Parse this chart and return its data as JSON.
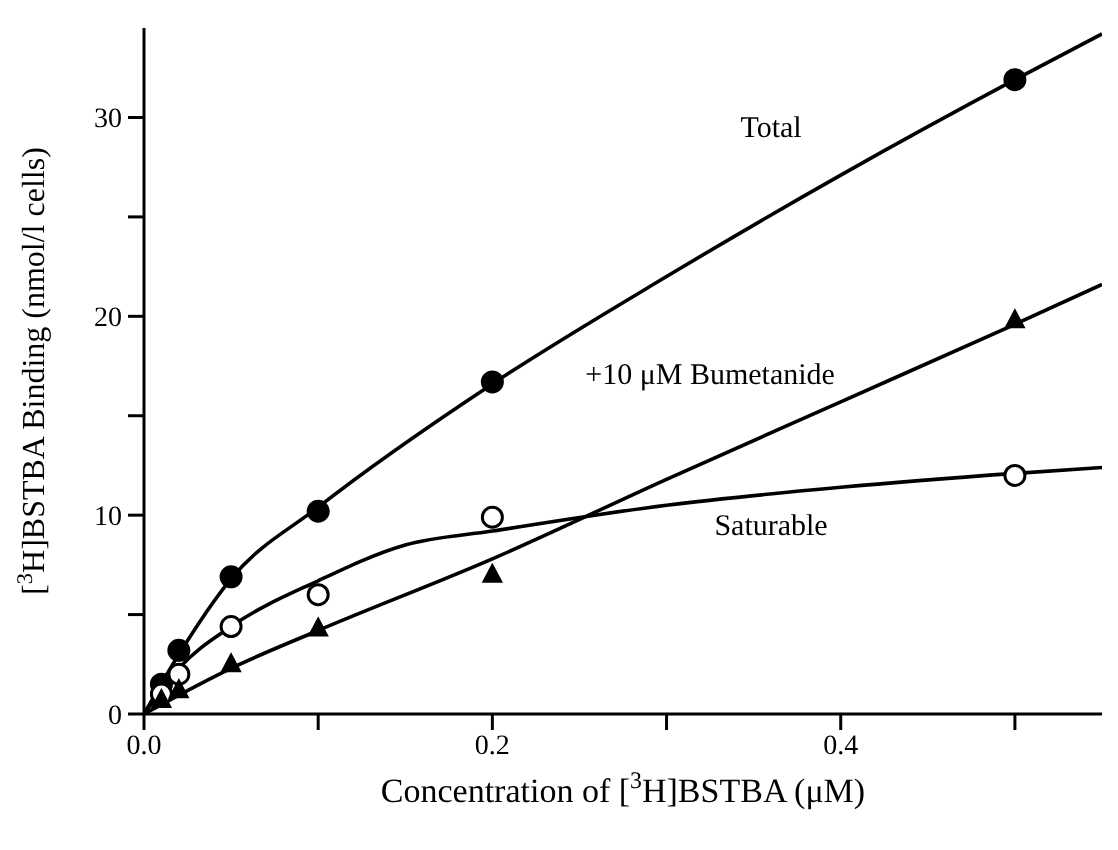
{
  "chart_data": {
    "type": "scatter",
    "xlabel": "Concentration of [$^{3}$H]BSTBA  (μM)",
    "ylabel": "[$^{3}$H]BSTBA Binding  (nmol/l cells)",
    "xlim": [
      0,
      0.55
    ],
    "xticks": [
      {
        "value": 0,
        "label": "0.0"
      },
      {
        "value": 0.1,
        "label": null
      },
      0.2,
      {
        "value": 0.3,
        "label": null
      },
      0.4,
      {
        "value": 0.5,
        "label": null
      }
    ],
    "ylim": [
      0,
      34.5
    ],
    "yticks": [
      0,
      {
        "value": 5,
        "label": null
      },
      10,
      {
        "value": 15,
        "label": null
      },
      20,
      {
        "value": 25,
        "label": null
      },
      30
    ],
    "grid": false,
    "legend": false,
    "series": [
      {
        "marker": "circle",
        "color": "#000000",
        "x": [
          0.01,
          0.02,
          0.05,
          0.1,
          0.2,
          0.5
        ],
        "values": [
          1.5,
          3.2,
          6.9,
          10.2,
          16.7,
          31.9
        ]
      },
      {
        "marker": "circle",
        "color": "#000000",
        "x": [
          0.01,
          0.02,
          0.05,
          0.1,
          0.2,
          0.5
        ],
        "values": [
          1.0,
          2.0,
          4.4,
          6.0,
          9.9,
          12.0
        ]
      },
      {
        "marker": "triangle",
        "color": "#000000",
        "x": [
          0.01,
          0.02,
          0.05,
          0.1,
          0.2,
          0.5
        ],
        "values": [
          0.7,
          1.2,
          2.5,
          4.3,
          7.0,
          19.8
        ]
      },
      {
        "type": "line",
        "name": "Total",
        "marker": "none",
        "line_style": "solid",
        "color": "#000000",
        "x": [
          0,
          0.02,
          0.05,
          0.1,
          0.2,
          0.3,
          0.4,
          0.5,
          0.55
        ],
        "values": [
          0,
          3.0,
          6.8,
          10.4,
          16.6,
          22.0,
          27.1,
          31.9,
          34.2
        ]
      },
      {
        "type": "line",
        "name": "Saturable",
        "marker": "none",
        "line_style": "solid",
        "color": "#000000",
        "x": [
          0,
          0.02,
          0.05,
          0.1,
          0.15,
          0.2,
          0.3,
          0.4,
          0.5,
          0.55
        ],
        "values": [
          0,
          2.3,
          4.4,
          6.7,
          8.5,
          9.2,
          10.5,
          11.4,
          12.1,
          12.4
        ]
      },
      {
        "type": "line",
        "name": "+10 μM Bumetanide",
        "marker": "none",
        "line_style": "solid",
        "color": "#000000",
        "x": [
          0,
          0.05,
          0.1,
          0.2,
          0.3,
          0.4,
          0.5,
          0.55
        ],
        "values": [
          0,
          2.3,
          4.2,
          7.8,
          11.8,
          15.7,
          19.6,
          21.6
        ]
      }
    ]
  }
}
